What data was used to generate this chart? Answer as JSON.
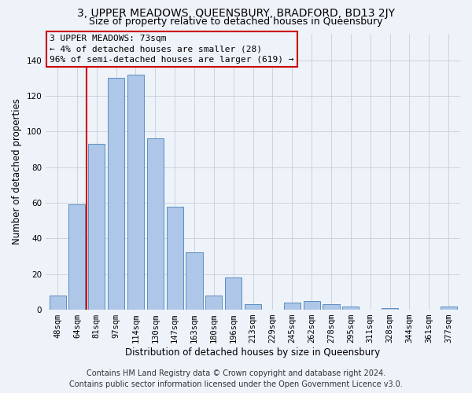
{
  "title": "3, UPPER MEADOWS, QUEENSBURY, BRADFORD, BD13 2JY",
  "subtitle": "Size of property relative to detached houses in Queensbury",
  "xlabel": "Distribution of detached houses by size in Queensbury",
  "ylabel": "Number of detached properties",
  "footer_line1": "Contains HM Land Registry data © Crown copyright and database right 2024.",
  "footer_line2": "Contains public sector information licensed under the Open Government Licence v3.0.",
  "annotation_line1": "3 UPPER MEADOWS: 73sqm",
  "annotation_line2": "← 4% of detached houses are smaller (28)",
  "annotation_line3": "96% of semi-detached houses are larger (619) →",
  "bar_labels": [
    "48sqm",
    "64sqm",
    "81sqm",
    "97sqm",
    "114sqm",
    "130sqm",
    "147sqm",
    "163sqm",
    "180sqm",
    "196sqm",
    "213sqm",
    "229sqm",
    "245sqm",
    "262sqm",
    "278sqm",
    "295sqm",
    "311sqm",
    "328sqm",
    "344sqm",
    "361sqm",
    "377sqm"
  ],
  "bar_values": [
    8,
    59,
    93,
    130,
    132,
    96,
    58,
    32,
    8,
    18,
    3,
    0,
    4,
    5,
    3,
    2,
    0,
    1,
    0,
    0,
    2
  ],
  "bar_color": "#aec6e8",
  "bar_edge_color": "#5a8fc0",
  "bg_color": "#eef2f9",
  "grid_color": "#c8cdd8",
  "vline_color": "#cc0000",
  "annotation_box_edge": "#cc0000",
  "ylim": [
    0,
    155
  ],
  "yticks": [
    0,
    20,
    40,
    60,
    80,
    100,
    120,
    140
  ],
  "title_fontsize": 10,
  "subtitle_fontsize": 9,
  "axis_label_fontsize": 8.5,
  "tick_fontsize": 7.5,
  "annotation_fontsize": 8,
  "footer_fontsize": 7
}
